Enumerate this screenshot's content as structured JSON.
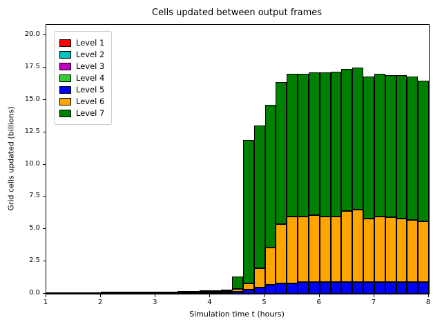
{
  "chart_data": {
    "type": "bar",
    "stacked": true,
    "title": "Cells updated between output frames",
    "xlabel": "Simulation time t (hours)",
    "ylabel": "Grid cells updated (billions)",
    "grid": false,
    "legend_position": "upper left",
    "xlim": [
      1,
      8
    ],
    "ylim": [
      0,
      20.8
    ],
    "xticks": [
      1,
      2,
      3,
      4,
      5,
      6,
      7,
      8
    ],
    "xtick_labels": [
      "1",
      "2",
      "3",
      "4",
      "5",
      "6",
      "7",
      "8"
    ],
    "yticks": [
      0,
      2.5,
      5,
      7.5,
      10,
      12.5,
      15,
      17.5,
      20
    ],
    "ytick_labels": [
      "0.0",
      "2.5",
      "5.0",
      "7.5",
      "10.0",
      "12.5",
      "15.0",
      "17.5",
      "20.0"
    ],
    "bar_width": 0.2,
    "bar_left_edges": [
      1.0,
      1.2,
      1.4,
      1.6,
      1.8,
      2.0,
      2.2,
      2.4,
      2.6,
      2.8,
      3.0,
      3.2,
      3.4,
      3.6,
      3.8,
      4.0,
      4.2,
      4.4,
      4.6,
      4.8,
      5.0,
      5.2,
      5.4,
      5.6,
      5.8,
      6.0,
      6.2,
      6.4,
      6.6,
      6.8,
      7.0,
      7.2,
      7.4,
      7.6,
      7.8
    ],
    "series": [
      {
        "name": "Level 1",
        "color": "#ff0000",
        "values": [
          0,
          0,
          0,
          0,
          0,
          0,
          0,
          0,
          0,
          0,
          0,
          0,
          0,
          0,
          0,
          0,
          0,
          0,
          0,
          0,
          0,
          0,
          0,
          0,
          0,
          0,
          0,
          0,
          0,
          0,
          0,
          0,
          0,
          0,
          0
        ]
      },
      {
        "name": "Level 2",
        "color": "#00bfbf",
        "values": [
          0,
          0,
          0,
          0,
          0,
          0,
          0,
          0,
          0,
          0,
          0,
          0,
          0,
          0,
          0,
          0,
          0,
          0,
          0,
          0,
          0,
          0,
          0,
          0,
          0,
          0,
          0,
          0,
          0,
          0,
          0,
          0,
          0,
          0,
          0
        ]
      },
      {
        "name": "Level 3",
        "color": "#bf00bf",
        "values": [
          0,
          0,
          0,
          0,
          0,
          0,
          0,
          0,
          0,
          0,
          0,
          0,
          0,
          0,
          0,
          0,
          0,
          0,
          0,
          0,
          0,
          0,
          0,
          0,
          0,
          0,
          0,
          0,
          0,
          0,
          0,
          0,
          0,
          0,
          0
        ]
      },
      {
        "name": "Level 4",
        "color": "#32cd32",
        "values": [
          0,
          0,
          0,
          0,
          0,
          0,
          0,
          0,
          0,
          0,
          0,
          0,
          0,
          0,
          0,
          0,
          0,
          0,
          0,
          0,
          0,
          0,
          0,
          0,
          0,
          0,
          0,
          0,
          0,
          0,
          0,
          0,
          0,
          0,
          0
        ]
      },
      {
        "name": "Level 5",
        "color": "#0000ff",
        "values": [
          0.01,
          0.01,
          0.01,
          0.01,
          0.01,
          0.02,
          0.02,
          0.02,
          0.02,
          0.03,
          0.03,
          0.04,
          0.05,
          0.06,
          0.08,
          0.1,
          0.13,
          0.15,
          0.3,
          0.5,
          0.7,
          0.8,
          0.8,
          0.9,
          0.9,
          0.9,
          0.9,
          0.9,
          0.9,
          0.9,
          0.9,
          0.9,
          0.9,
          0.9,
          0.9
        ]
      },
      {
        "name": "Level 6",
        "color": "#ffa500",
        "values": [
          0.01,
          0.01,
          0.01,
          0.01,
          0.01,
          0.01,
          0.01,
          0.02,
          0.02,
          0.02,
          0.03,
          0.03,
          0.04,
          0.05,
          0.06,
          0.07,
          0.09,
          0.25,
          0.5,
          1.5,
          2.9,
          4.6,
          5.2,
          5.1,
          5.2,
          5.1,
          5.1,
          5.5,
          5.6,
          4.9,
          5.1,
          5.0,
          4.9,
          4.8,
          4.7
        ]
      },
      {
        "name": "Level 7",
        "color": "#008000",
        "values": [
          0.0,
          0.0,
          0.01,
          0.01,
          0.02,
          0.02,
          0.02,
          0.02,
          0.03,
          0.03,
          0.04,
          0.05,
          0.05,
          0.06,
          0.07,
          0.09,
          0.1,
          0.95,
          11.1,
          11.0,
          11.0,
          11.0,
          11.0,
          11.0,
          11.0,
          11.1,
          11.2,
          11.0,
          11.0,
          11.0,
          11.0,
          11.0,
          11.1,
          11.1,
          10.9
        ]
      }
    ]
  },
  "legend": {
    "items": [
      {
        "label": "Level 1",
        "color": "#ff0000"
      },
      {
        "label": "Level 2",
        "color": "#00bfbf"
      },
      {
        "label": "Level 3",
        "color": "#bf00bf"
      },
      {
        "label": "Level 4",
        "color": "#32cd32"
      },
      {
        "label": "Level 5",
        "color": "#0000ff"
      },
      {
        "label": "Level 6",
        "color": "#ffa500"
      },
      {
        "label": "Level 7",
        "color": "#008000"
      }
    ]
  }
}
